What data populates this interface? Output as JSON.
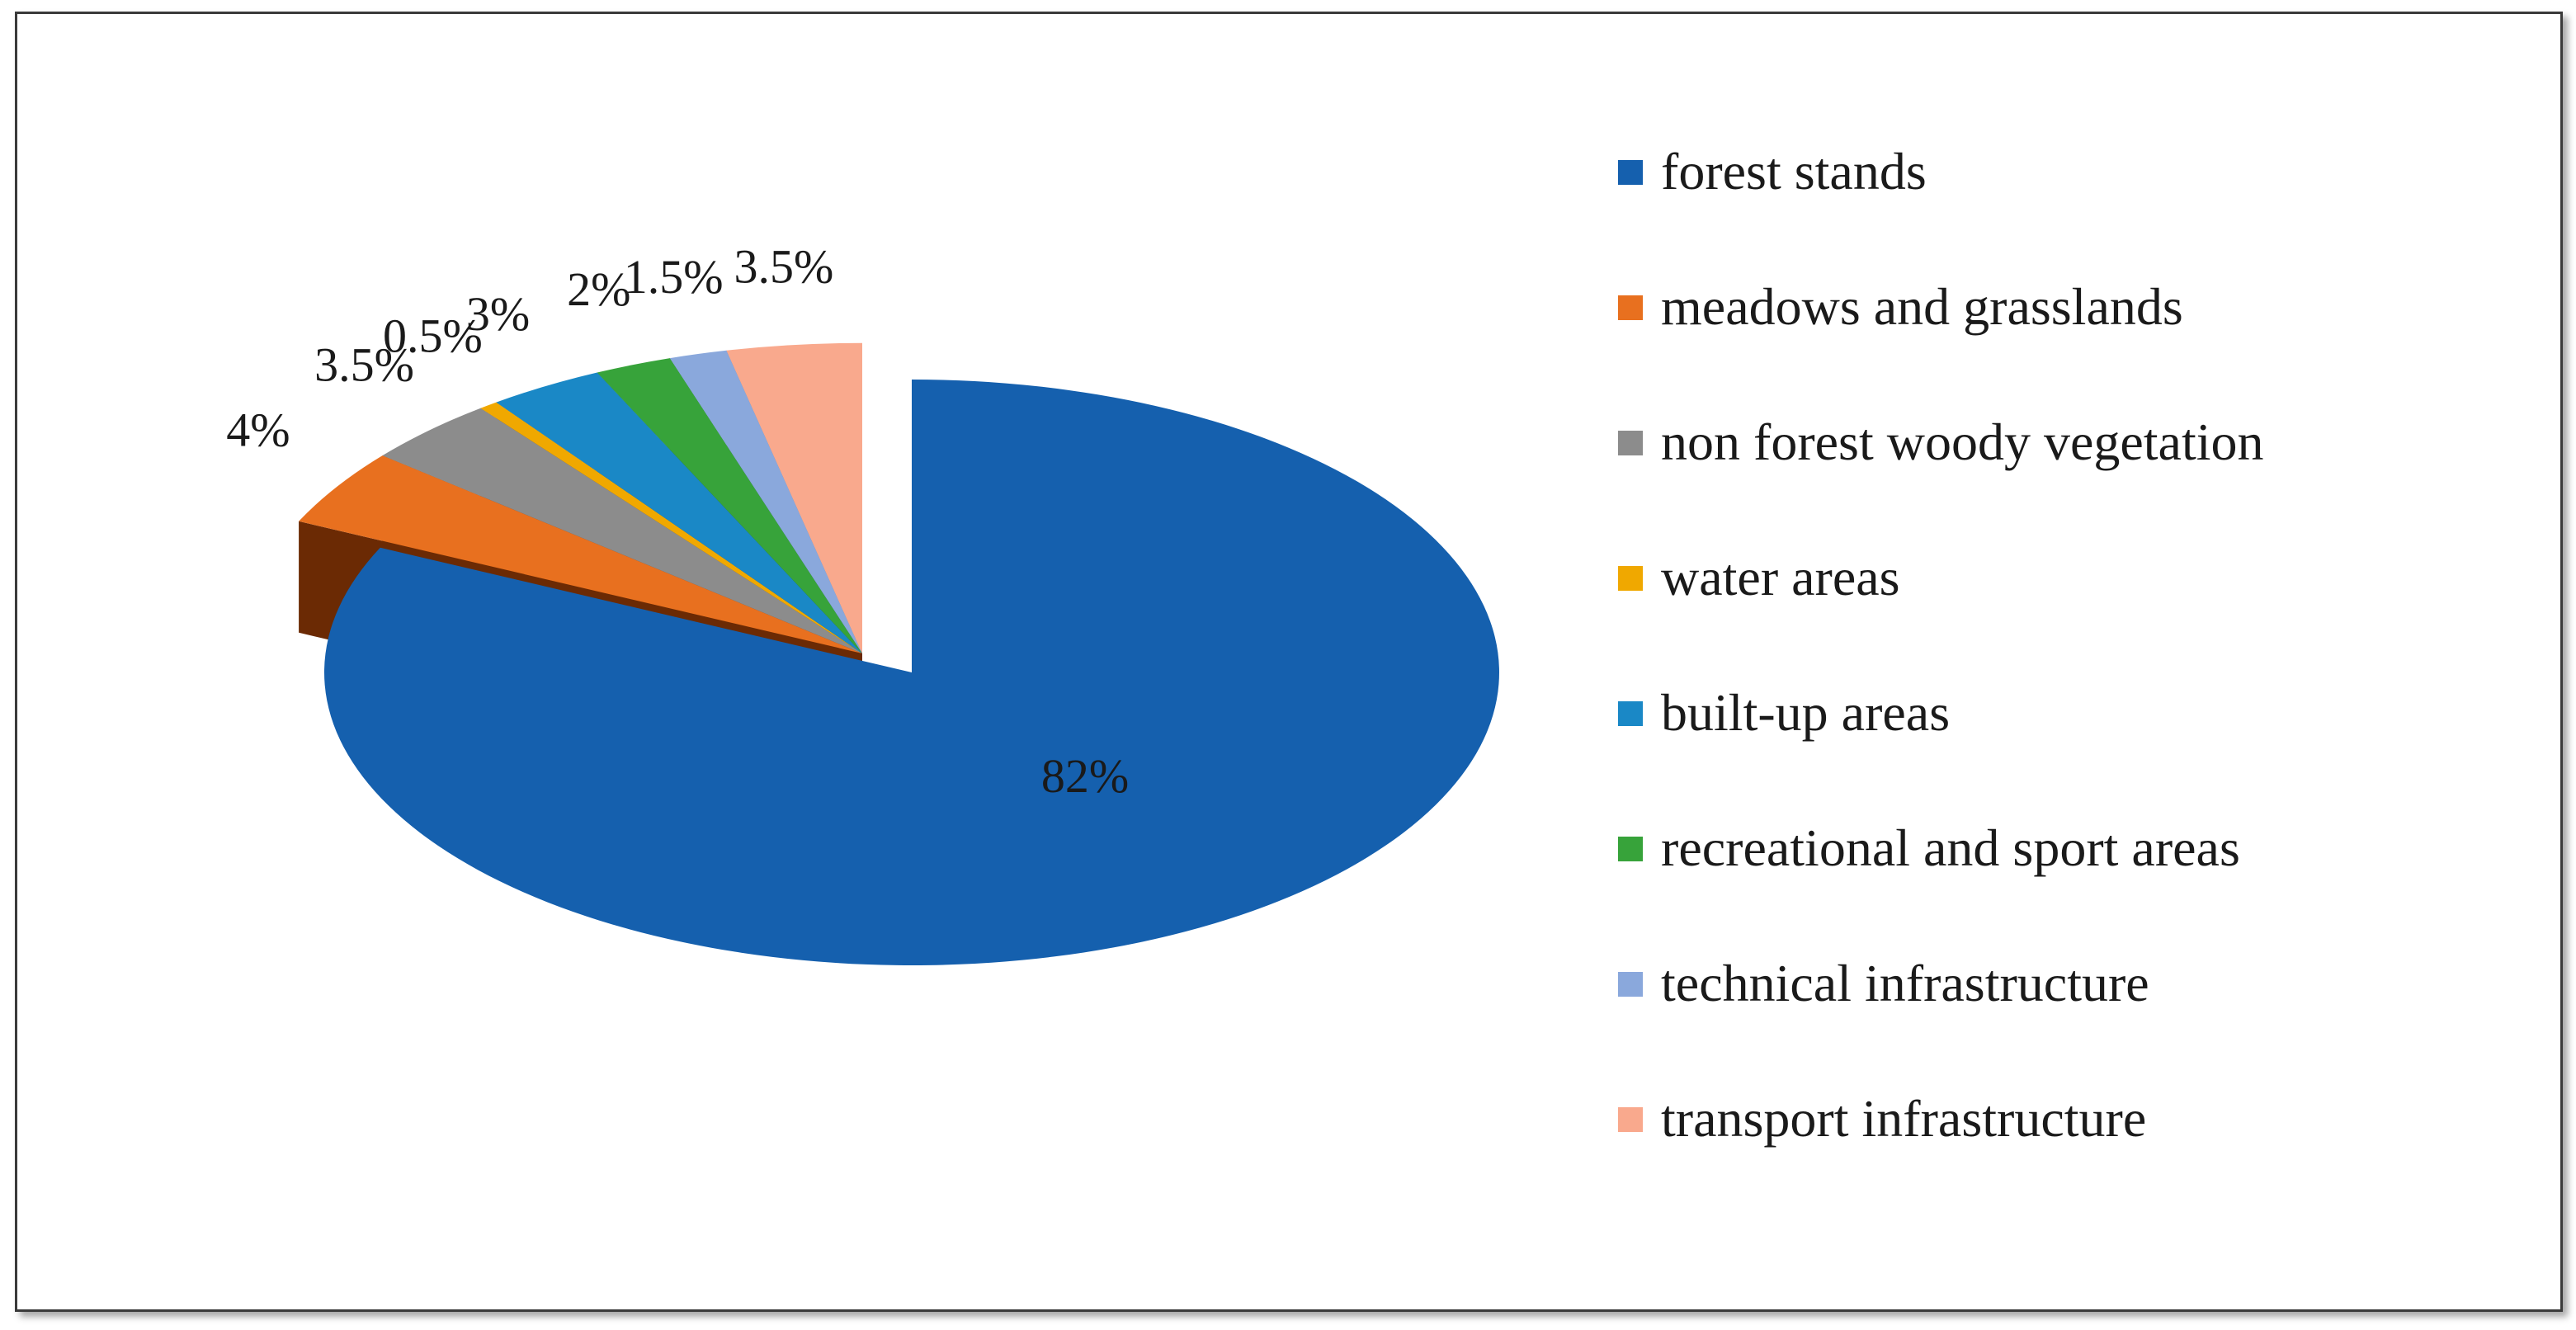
{
  "chart_data": {
    "type": "pie",
    "style": "3d-exploded",
    "title": "",
    "legend_position": "right",
    "slices": [
      {
        "name": "forest stands",
        "value": 82,
        "label": "82%",
        "color": "#1560ae",
        "side": "#0d3f73"
      },
      {
        "name": "meadows and grasslands",
        "value": 4,
        "label": "4%",
        "color": "#e8701f",
        "side": "#6b2a04"
      },
      {
        "name": "non forest woody vegetation",
        "value": 3.5,
        "label": "3.5%",
        "color": "#8c8c8c",
        "side": "#3d3d3d"
      },
      {
        "name": "water areas",
        "value": 0.5,
        "label": "0.5%",
        "color": "#f0a800",
        "side": "#6a4a00"
      },
      {
        "name": "built-up areas",
        "value": 3,
        "label": "3%",
        "color": "#1a88c6",
        "side": "#0b3f5e"
      },
      {
        "name": "recreational and sport areas",
        "value": 2,
        "label": "2%",
        "color": "#37a33a",
        "side": "#143d15"
      },
      {
        "name": "technical infrastructure",
        "value": 1.5,
        "label": "1.5%",
        "color": "#8aa8dc",
        "side": "#3f4f70"
      },
      {
        "name": "transport infrastructure",
        "value": 3.5,
        "label": "3.5%",
        "color": "#f9a98d",
        "side": "#7a4c40"
      }
    ]
  }
}
